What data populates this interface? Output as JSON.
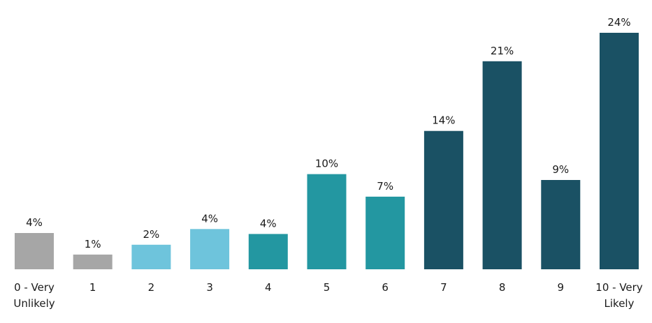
{
  "chart_data": {
    "type": "bar",
    "title": "",
    "xlabel": "",
    "ylabel": "",
    "categories": [
      [
        "0 - Very",
        "Unlikely"
      ],
      [
        "1"
      ],
      [
        "2"
      ],
      [
        "3"
      ],
      [
        "4"
      ],
      [
        "5"
      ],
      [
        "6"
      ],
      [
        "7"
      ],
      [
        "8"
      ],
      [
        "9"
      ],
      [
        "10 - Very",
        "Likely"
      ]
    ],
    "values": [
      3.7,
      1.5,
      2.5,
      4.1,
      3.6,
      9.7,
      7.4,
      14.1,
      21.2,
      9.1,
      24.1
    ],
    "value_labels": [
      "4%",
      "1%",
      "2%",
      "4%",
      "4%",
      "10%",
      "7%",
      "14%",
      "21%",
      "9%",
      "24%"
    ],
    "colors": [
      "#a6a6a6",
      "#a6a6a6",
      "#6ec4dc",
      "#6ec4dc",
      "#2397a1",
      "#2397a1",
      "#2397a1",
      "#1a5164",
      "#1a5164",
      "#1a5164",
      "#1a5164"
    ],
    "ylim": [
      0,
      24.1
    ],
    "grid": false,
    "legend": "none"
  }
}
